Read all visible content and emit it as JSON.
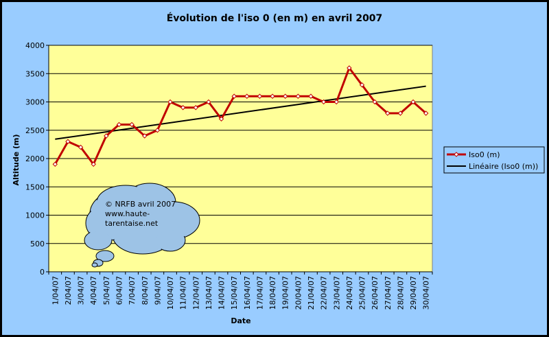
{
  "chart_data": {
    "type": "line",
    "title": "Évolution de l'iso 0 (en m) en avril 2007",
    "xlabel": "Date",
    "ylabel": "Altitude (m)",
    "ylim": [
      0,
      4000
    ],
    "yticks": [
      0,
      500,
      1000,
      1500,
      2000,
      2500,
      3000,
      3500,
      4000
    ],
    "grid": true,
    "legend_position": "right",
    "colors": {
      "frame_bg": "#99ccff",
      "plot_bg": "#ffff99",
      "series": "#c00000",
      "trend": "#000000"
    },
    "categories": [
      "1/04/07",
      "2/04/07",
      "3/04/07",
      "4/04/07",
      "5/04/07",
      "6/04/07",
      "7/04/07",
      "8/04/07",
      "9/04/07",
      "10/04/07",
      "11/04/07",
      "12/04/07",
      "13/04/07",
      "14/04/07",
      "15/04/07",
      "16/04/07",
      "17/04/07",
      "18/04/07",
      "19/04/07",
      "20/04/07",
      "21/04/07",
      "22/04/07",
      "23/04/07",
      "24/04/07",
      "25/04/07",
      "26/04/07",
      "27/04/07",
      "28/04/07",
      "29/04/07",
      "30/04/07"
    ],
    "series": [
      {
        "name": "Iso0 (m)",
        "values": [
          1900,
          2300,
          2200,
          1900,
          2400,
          2600,
          2600,
          2400,
          2500,
          3000,
          2900,
          2900,
          3000,
          2700,
          3100,
          3100,
          3100,
          3100,
          3100,
          3100,
          3100,
          3000,
          3000,
          3600,
          3300,
          3000,
          2800,
          2800,
          3000,
          2800
        ]
      }
    ],
    "trendline": {
      "name": "Linéaire (Iso0 (m))",
      "type": "linear"
    },
    "annotation": {
      "lines": [
        "© NRFB avril 2007",
        "www.haute-",
        "tarentaise.net"
      ]
    }
  }
}
